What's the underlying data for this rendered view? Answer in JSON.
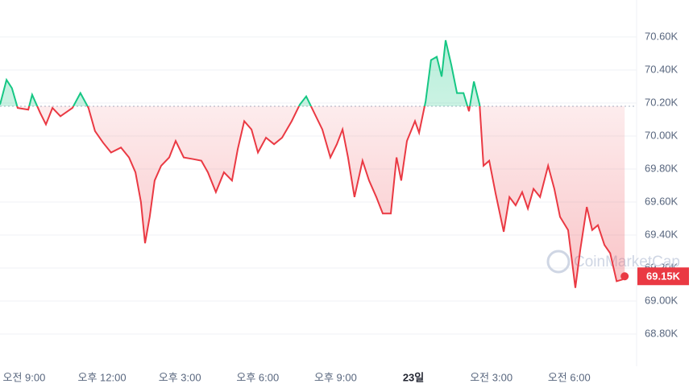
{
  "chart_data": {
    "type": "line",
    "x": [
      -0.93,
      -0.68,
      -0.47,
      -0.25,
      0.16,
      0.31,
      0.62,
      0.84,
      1.09,
      1.4,
      1.86,
      2.17,
      2.48,
      2.73,
      3.04,
      3.35,
      3.73,
      4.04,
      4.29,
      4.5,
      4.66,
      4.84,
      5.03,
      5.28,
      5.59,
      5.84,
      6.15,
      6.52,
      6.83,
      7.08,
      7.39,
      7.7,
      8.01,
      8.23,
      8.48,
      8.76,
      9.01,
      9.32,
      9.63,
      9.94,
      10.31,
      10.62,
      10.87,
      11.18,
      11.49,
      11.8,
      12.05,
      12.27,
      12.48,
      12.73,
      13.04,
      13.29,
      13.57,
      13.82,
      14.13,
      14.35,
      14.53,
      14.75,
      15.06,
      15.22,
      15.47,
      15.68,
      15.9,
      16.09,
      16.24,
      16.46,
      16.68,
      16.93,
      17.14,
      17.33,
      17.55,
      17.7,
      17.92,
      18.17,
      18.48,
      18.7,
      18.94,
      19.19,
      19.41,
      19.63,
      19.88,
      20.19,
      20.43,
      20.65,
      20.96,
      21.24,
      21.43,
      21.68,
      21.89,
      22.11,
      22.36,
      22.58,
      22.83,
      23.04,
      23.14
    ],
    "values": [
      70190,
      70340,
      70290,
      70170,
      70160,
      70250,
      70140,
      70070,
      70170,
      70120,
      70170,
      70260,
      70170,
      70030,
      69960,
      69900,
      69930,
      69870,
      69780,
      69600,
      69350,
      69510,
      69730,
      69820,
      69870,
      69970,
      69870,
      69860,
      69850,
      69780,
      69660,
      69780,
      69730,
      69920,
      70090,
      70040,
      69900,
      69990,
      69950,
      69990,
      70090,
      70190,
      70240,
      70140,
      70040,
      69870,
      69950,
      70040,
      69870,
      69630,
      69850,
      69730,
      69630,
      69530,
      69530,
      69870,
      69730,
      69970,
      70090,
      70020,
      70210,
      70460,
      70480,
      70360,
      70580,
      70430,
      70260,
      70260,
      70150,
      70330,
      70190,
      69820,
      69850,
      69650,
      69420,
      69630,
      69580,
      69660,
      69560,
      69680,
      69630,
      69820,
      69680,
      69510,
      69430,
      69080,
      69310,
      69570,
      69430,
      69460,
      69340,
      69290,
      69120,
      69130,
      69150
    ],
    "value_labels": [
      null,
      null,
      null,
      null,
      null,
      null,
      null,
      null,
      null,
      null,
      null,
      null,
      null,
      null,
      null,
      null,
      null,
      null,
      null,
      null,
      null,
      null,
      null,
      null,
      null,
      null,
      null,
      null,
      null,
      null,
      null,
      null,
      null,
      null,
      null,
      null,
      null,
      null,
      null,
      null,
      null,
      null,
      null,
      null,
      null,
      null,
      null,
      null,
      null,
      null,
      null,
      null,
      null,
      null,
      null,
      null,
      null,
      null,
      null,
      null,
      null,
      null,
      null,
      null,
      null,
      null,
      null,
      null,
      null,
      null,
      null,
      null,
      null,
      null,
      null,
      null,
      null,
      null,
      null,
      null,
      null,
      null,
      null,
      null,
      null,
      null,
      null,
      null,
      null,
      null,
      null,
      null,
      null,
      null,
      "69.15K"
    ],
    "baseline": 70180,
    "up_color": "#16c784",
    "down_color": "#ea3943",
    "xlim": [
      -0.93,
      23.6
    ],
    "xticks": [
      {
        "value": 0,
        "label": "오전 9:00"
      },
      {
        "value": 3,
        "label": "오후 12:00"
      },
      {
        "value": 6,
        "label": "오후 3:00"
      },
      {
        "value": 9,
        "label": "오후 6:00"
      },
      {
        "value": 12,
        "label": "오후 9:00"
      },
      {
        "value": 15,
        "label": "23일"
      },
      {
        "value": 18,
        "label": "오전 3:00"
      },
      {
        "value": 21,
        "label": "오전 6:00"
      }
    ],
    "ylim": [
      68605,
      70824
    ],
    "yticks": [
      {
        "value": 68800,
        "label": "68.80K"
      },
      {
        "value": 69000,
        "label": "69.00K"
      },
      {
        "value": 69200,
        "label": "69.20K"
      },
      {
        "value": 69400,
        "label": "69.40K"
      },
      {
        "value": 69600,
        "label": "69.60K"
      },
      {
        "value": 69800,
        "label": "69.80K"
      },
      {
        "value": 70000,
        "label": "70.00K"
      },
      {
        "value": 70200,
        "label": "70.20K"
      },
      {
        "value": 70400,
        "label": "70.40K"
      },
      {
        "value": 70600,
        "label": "70.60K"
      }
    ],
    "grid": true,
    "watermark": "CoinMarketCap"
  }
}
